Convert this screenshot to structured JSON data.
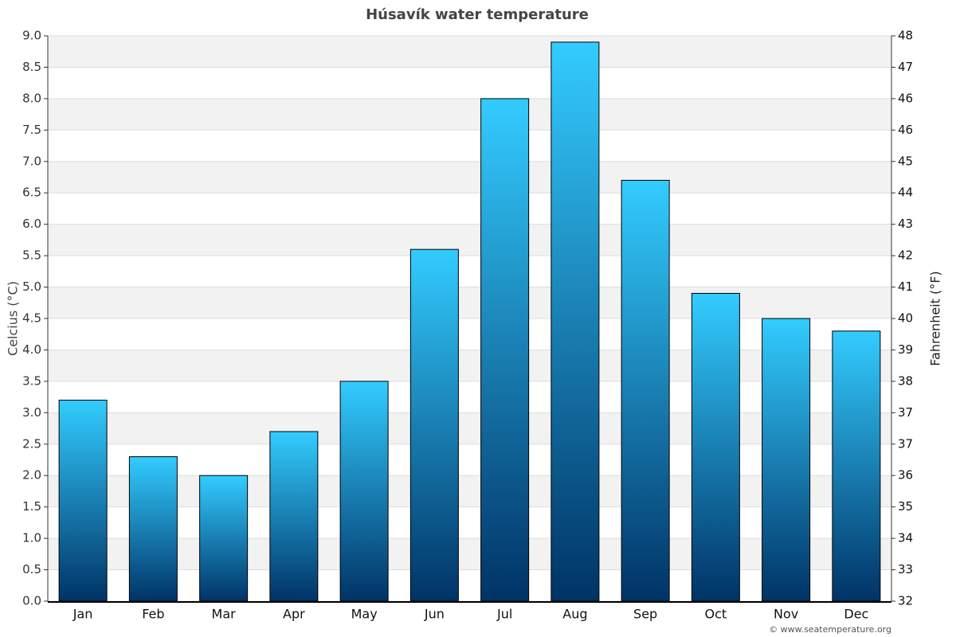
{
  "chart_data": {
    "type": "bar",
    "title": "Húsavík water temperature",
    "categories": [
      "Jan",
      "Feb",
      "Mar",
      "Apr",
      "May",
      "Jun",
      "Jul",
      "Aug",
      "Sep",
      "Oct",
      "Nov",
      "Dec"
    ],
    "values": [
      3.2,
      2.3,
      2.0,
      2.7,
      3.5,
      5.6,
      8.0,
      8.9,
      6.7,
      4.9,
      4.5,
      4.3
    ],
    "gradient": [
      "#33ccff",
      "#003366"
    ],
    "ylabel": "Celcius (°C)",
    "y2label": "Fahrenheit (°F)",
    "ylim": [
      0,
      9
    ],
    "yticks": [
      {
        "value": 0,
        "label": "0.0"
      },
      0.5,
      {
        "value": 1,
        "label": "1.0"
      },
      1.5,
      {
        "value": 2,
        "label": "2.0"
      },
      2.5,
      {
        "value": 3,
        "label": "3.0"
      },
      3.5,
      {
        "value": 4,
        "label": "4.0"
      },
      4.5,
      {
        "value": 5,
        "label": "5.0"
      },
      5.5,
      {
        "value": 6,
        "label": "6.0"
      },
      6.5,
      {
        "value": 7,
        "label": "7.0"
      },
      7.5,
      {
        "value": 8,
        "label": "8.0"
      },
      8.5,
      {
        "value": 9,
        "label": "9.0"
      }
    ],
    "y2lim": [
      32,
      48.2
    ],
    "y2ticks": [
      32,
      {
        "value": 32.9,
        "label": "33"
      },
      {
        "value": 33.8,
        "label": "34"
      },
      {
        "value": 34.7,
        "label": "35"
      },
      {
        "value": 35.6,
        "label": "36"
      },
      {
        "value": 36.5,
        "label": "37"
      },
      {
        "value": 37.4,
        "label": "37"
      },
      {
        "value": 38.3,
        "label": "38"
      },
      {
        "value": 39.2,
        "label": "39"
      },
      {
        "value": 40.1,
        "label": "40"
      },
      41,
      {
        "value": 41.9,
        "label": "42"
      },
      {
        "value": 42.8,
        "label": "43"
      },
      {
        "value": 43.7,
        "label": "44"
      },
      {
        "value": 44.6,
        "label": "45"
      },
      {
        "value": 45.5,
        "label": "46"
      },
      {
        "value": 46.4,
        "label": "46"
      },
      {
        "value": 47.3,
        "label": "47"
      },
      {
        "value": 48.2,
        "label": "48"
      }
    ],
    "grid": true,
    "striped": true,
    "source": "© www.seatemperature.org"
  }
}
